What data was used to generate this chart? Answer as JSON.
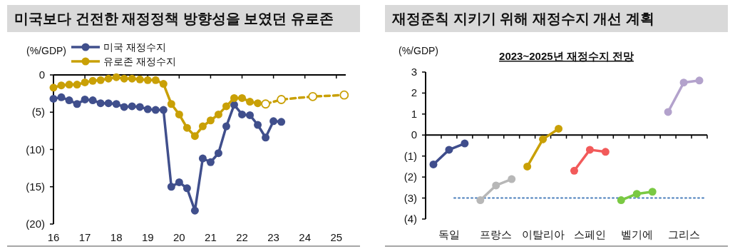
{
  "chart_data": [
    {
      "type": "line",
      "title": "미국보다 건전한 재정정책 방향성을 보였던 유로존",
      "ylabel": "(%/GDP)",
      "xlim": [
        16,
        25.3
      ],
      "xticks": [
        16,
        17,
        18,
        19,
        20,
        21,
        22,
        23,
        24,
        25
      ],
      "ylim": [
        -20,
        0
      ],
      "yticks": [
        {
          "value": 0,
          "label": "0"
        },
        {
          "value": -5,
          "label": "(5)"
        },
        {
          "value": -10,
          "label": "(10)"
        },
        {
          "value": -15,
          "label": "(15)"
        },
        {
          "value": -20,
          "label": "(20)"
        }
      ],
      "legend": "top left",
      "marker": "circle",
      "series": [
        {
          "name": "미국 재정수지",
          "color": "#404f8c",
          "x": [
            16,
            16.25,
            16.5,
            16.75,
            17,
            17.25,
            17.5,
            17.75,
            18,
            18.25,
            18.5,
            18.75,
            19,
            19.25,
            19.5,
            19.75,
            20,
            20.25,
            20.5,
            20.75,
            21,
            21.25,
            21.5,
            21.75,
            22,
            22.25,
            22.5,
            22.75,
            23,
            23.25
          ],
          "values": [
            -3.2,
            -3.0,
            -3.4,
            -3.9,
            -3.3,
            -3.4,
            -3.8,
            -3.8,
            -3.9,
            -4.3,
            -4.2,
            -4.3,
            -4.6,
            -4.7,
            -4.7,
            -15.0,
            -14.4,
            -15.2,
            -18.2,
            -11.2,
            -11.7,
            -10.5,
            -6.9,
            -4.0,
            -5.3,
            -5.4,
            -6.7,
            -8.4,
            -6.2,
            -6.3
          ]
        },
        {
          "name": "유로존 재정수지",
          "color": "#c9a006",
          "x": [
            16,
            16.25,
            16.5,
            16.75,
            17,
            17.25,
            17.5,
            17.75,
            18,
            18.25,
            18.5,
            18.75,
            19,
            19.25,
            19.5,
            19.75,
            20,
            20.25,
            20.5,
            20.75,
            21,
            21.25,
            21.5,
            21.75,
            22,
            22.25,
            22.5
          ],
          "values": [
            -1.7,
            -1.4,
            -1.3,
            -1.3,
            -1.0,
            -0.8,
            -0.7,
            -0.5,
            -0.3,
            -0.5,
            -0.5,
            -0.6,
            -0.7,
            -0.7,
            -1.2,
            -3.9,
            -5.3,
            -7.1,
            -8.2,
            -6.9,
            -6.1,
            -5.3,
            -4.2,
            -3.1,
            -3.1,
            -3.6,
            -3.8
          ]
        },
        {
          "color": "#c9a006",
          "line_style": "dashed",
          "x": [
            22.75,
            23.25,
            24.25,
            25.25
          ],
          "values": [
            -3.9,
            -3.3,
            -2.9,
            -2.7
          ]
        }
      ]
    },
    {
      "type": "line",
      "title": "재정준칙 지키기 위해 재정수지 개선 계획",
      "subtitle": "2023~2025년 재정수지 전망",
      "ylabel": "(%/GDP)",
      "categories": [
        null,
        "독일",
        null,
        null,
        "프랑스",
        null,
        null,
        "이탈리아",
        null,
        null,
        "스페인",
        null,
        null,
        "벨기에",
        null,
        null,
        "그리스",
        null
      ],
      "ylim": [
        -4,
        3
      ],
      "yticks": [
        {
          "value": 3,
          "label": "3"
        },
        {
          "value": 2,
          "label": "2"
        },
        {
          "value": 1,
          "label": "1"
        },
        {
          "value": 0,
          "label": "0"
        },
        {
          "value": -1,
          "label": "(1)"
        },
        {
          "value": -2,
          "label": "(2)"
        },
        {
          "value": -3,
          "label": "(3)"
        },
        {
          "value": -4,
          "label": "(4)"
        }
      ],
      "marker": "circle",
      "ref_lines": [
        {
          "axis": "y",
          "value": -3,
          "color": "#4a7ebb",
          "line_style": "dotted"
        }
      ],
      "series": [
        {
          "color": "#3f4d8c",
          "values": [
            -1.4,
            -0.7,
            -0.4,
            null,
            null,
            null,
            null,
            null,
            null,
            null,
            null,
            null,
            null,
            null,
            null,
            null,
            null,
            null
          ]
        },
        {
          "color": "#b7b7b7",
          "values": [
            null,
            null,
            null,
            -3.1,
            -2.4,
            -2.1,
            null,
            null,
            null,
            null,
            null,
            null,
            null,
            null,
            null,
            null,
            null,
            null
          ]
        },
        {
          "color": "#c9a006",
          "values": [
            null,
            null,
            null,
            null,
            null,
            null,
            -1.5,
            -0.2,
            0.3,
            null,
            null,
            null,
            null,
            null,
            null,
            null,
            null,
            null
          ]
        },
        {
          "color": "#f25a5a",
          "values": [
            null,
            null,
            null,
            null,
            null,
            null,
            null,
            null,
            null,
            -1.7,
            -0.7,
            -0.8,
            null,
            null,
            null,
            null,
            null,
            null
          ]
        },
        {
          "color": "#7ac943",
          "values": [
            null,
            null,
            null,
            null,
            null,
            null,
            null,
            null,
            null,
            null,
            null,
            null,
            -3.1,
            -2.8,
            -2.7,
            null,
            null,
            null
          ]
        },
        {
          "color": "#b3a2cc",
          "values": [
            null,
            null,
            null,
            null,
            null,
            null,
            null,
            null,
            null,
            null,
            null,
            null,
            null,
            null,
            null,
            1.1,
            2.5,
            2.6
          ]
        }
      ]
    }
  ]
}
